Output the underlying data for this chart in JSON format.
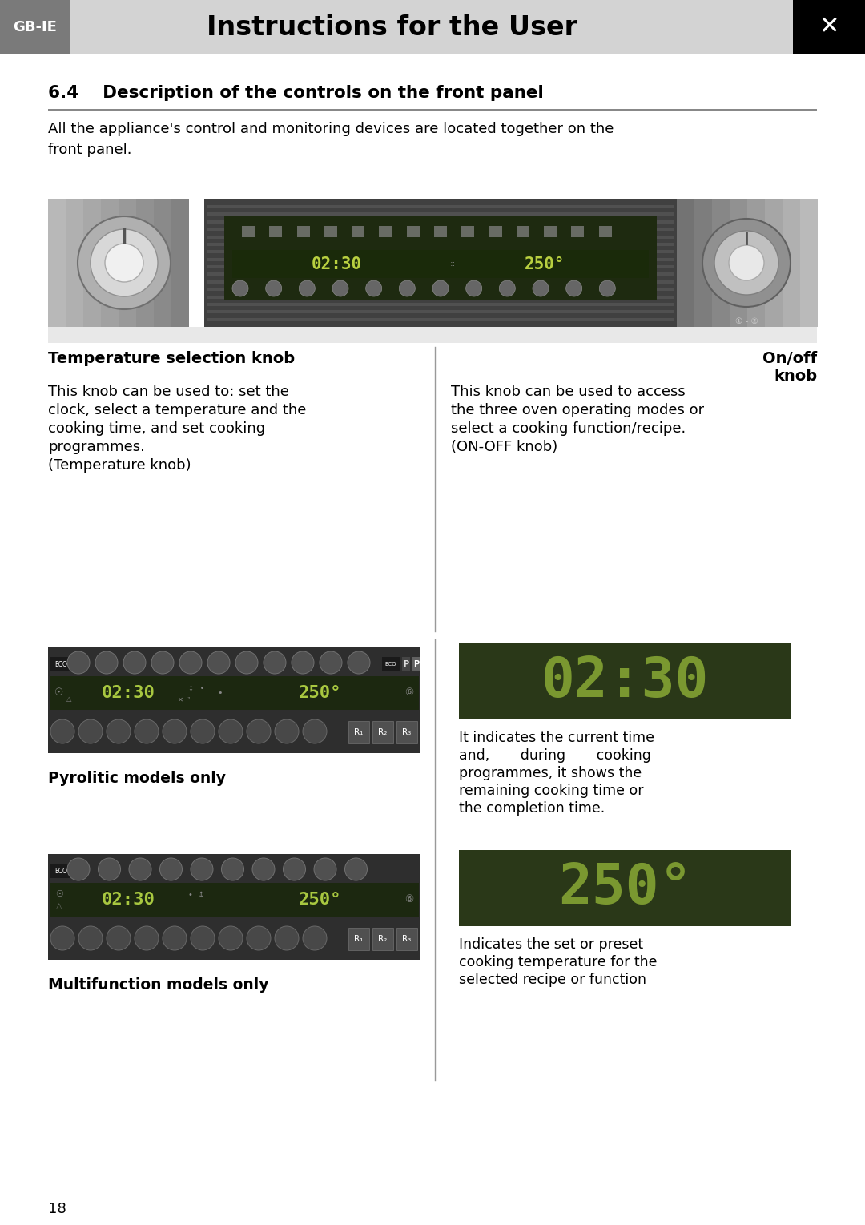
{
  "title": "Instructions for the User",
  "title_tag": "GB-IE",
  "section_title": "6.4    Description of the controls on the front panel",
  "intro_text": "All the appliance's control and monitoring devices are located together on the\nfront panel.",
  "left_col_header": "Temperature selection knob",
  "right_col_header": "On/off\nknob",
  "left_col_body_lines": [
    "This knob can be used to: set the",
    "clock, select a temperature and the",
    "cooking time, and set cooking",
    "programmes.",
    "(Temperature knob)"
  ],
  "right_col_body_lines": [
    "This knob can be used to access",
    "the three oven operating modes or",
    "select a cooking function/recipe.",
    "(ON-OFF knob)"
  ],
  "pyrolitic_label": "Pyrolitic models only",
  "multifunction_label": "Multifunction models only",
  "time_display_text": "02:30",
  "temp_display_text": "250°",
  "time_desc_lines": [
    "It indicates the current time",
    "and,       during       cooking",
    "programmes, it shows the",
    "remaining cooking time or",
    "the completion time."
  ],
  "temp_desc_lines": [
    "Indicates the set or preset",
    "cooking temperature for the",
    "selected recipe or function"
  ],
  "page_number": "18",
  "bg_color": "#ffffff",
  "header_bg": "#d3d3d3",
  "header_tag_bg": "#7a7a7a",
  "section_line_color": "#555555",
  "display_bg_dark": "#2a3a1a",
  "display_text_color": "#a0b860",
  "panel_center_bg": "#3c3c3c",
  "panel_side_bg": "#a0a0a0",
  "col_divider_color": "#aaaaaa",
  "knob_outer": "#c0c0c0",
  "knob_inner": "#e8e8e8",
  "knob_dark": "#606060"
}
